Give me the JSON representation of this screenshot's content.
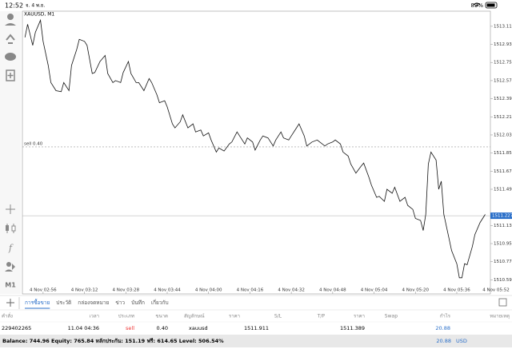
{
  "status_bar": {
    "time": "12:52",
    "date": "จ. 4 พ.ย.",
    "battery": "89%"
  },
  "toolbar": {
    "timeframe": "M1"
  },
  "chart_data": {
    "type": "line",
    "title": "XAUUSD, M1",
    "color": "#111111",
    "xlim": [
      0,
      181
    ],
    "ylim": [
      1510.45,
      1513.26
    ],
    "xticks": [
      {
        "value": 8,
        "label": "4 Nov 02:56"
      },
      {
        "value": 24,
        "label": "4 Nov 03:12"
      },
      {
        "value": 40,
        "label": "4 Nov 03:28"
      },
      {
        "value": 56,
        "label": "4 Nov 03:44"
      },
      {
        "value": 72,
        "label": "4 Nov 04:00"
      },
      {
        "value": 88,
        "label": "4 Nov 04:16"
      },
      {
        "value": 104,
        "label": "4 Nov 04:32"
      },
      {
        "value": 120,
        "label": "4 Nov 04:48"
      },
      {
        "value": 136,
        "label": "4 Nov 05:04"
      },
      {
        "value": 152,
        "label": "4 Nov 05:20"
      },
      {
        "value": 168,
        "label": "4 Nov 05:36"
      },
      {
        "value": 184,
        "label": "4 Nov 05:52"
      }
    ],
    "yticks": [
      {
        "value": 1513.11,
        "label": "1513.110"
      },
      {
        "value": 1512.93,
        "label": "1512.930"
      },
      {
        "value": 1512.75,
        "label": "1512.750"
      },
      {
        "value": 1512.57,
        "label": "1512.570"
      },
      {
        "value": 1512.39,
        "label": "1512.390"
      },
      {
        "value": 1512.21,
        "label": "1512.210"
      },
      {
        "value": 1512.03,
        "label": "1512.030"
      },
      {
        "value": 1511.85,
        "label": "1511.850"
      },
      {
        "value": 1511.67,
        "label": "1511.670"
      },
      {
        "value": 1511.49,
        "label": "1511.490"
      },
      {
        "value": 1511.13,
        "label": "1511.130"
      },
      {
        "value": 1510.95,
        "label": "1510.950"
      },
      {
        "value": 1510.77,
        "label": "1510.770"
      },
      {
        "value": 1510.59,
        "label": "1510.590"
      }
    ],
    "bid": 1511.227,
    "order_line": {
      "label": "sell 0.40",
      "value": 1511.911
    },
    "x": [
      1,
      2,
      4,
      5,
      7,
      8,
      10,
      11,
      13,
      15,
      16,
      18,
      19,
      21,
      22,
      24,
      25,
      27,
      28,
      30,
      32,
      33,
      35,
      36,
      38,
      39,
      41,
      42,
      44,
      45,
      47,
      49,
      50,
      52,
      53,
      55,
      56,
      58,
      59,
      61,
      62,
      64,
      66,
      67,
      69,
      70,
      72,
      73,
      75,
      76,
      78,
      80,
      81,
      83,
      84,
      86,
      87,
      89,
      90,
      92,
      93,
      95,
      97,
      98,
      100,
      101,
      103,
      104,
      106,
      107,
      109,
      110,
      112,
      114,
      115,
      117,
      118,
      120,
      121,
      123,
      124,
      126,
      127,
      129,
      131,
      132,
      134,
      135,
      137,
      138,
      140,
      141,
      143,
      144,
      146,
      148,
      149,
      151,
      152,
      154,
      155,
      156,
      157,
      158,
      160,
      161,
      162,
      163,
      165,
      166,
      168,
      169,
      170,
      171,
      172,
      174,
      175,
      177,
      179
    ],
    "values": [
      1513.0,
      1513.13,
      1512.92,
      1513.05,
      1513.17,
      1512.96,
      1512.72,
      1512.55,
      1512.47,
      1512.46,
      1512.55,
      1512.47,
      1512.72,
      1512.88,
      1512.98,
      1512.96,
      1512.92,
      1512.64,
      1512.65,
      1512.76,
      1512.82,
      1512.64,
      1512.55,
      1512.57,
      1512.55,
      1512.65,
      1512.76,
      1512.64,
      1512.55,
      1512.55,
      1512.47,
      1512.59,
      1512.55,
      1512.43,
      1512.35,
      1512.37,
      1512.31,
      1512.14,
      1512.1,
      1512.16,
      1512.23,
      1512.1,
      1512.14,
      1512.06,
      1512.08,
      1512.02,
      1512.05,
      1511.98,
      1511.86,
      1511.9,
      1511.87,
      1511.94,
      1511.96,
      1512.06,
      1512.02,
      1511.94,
      1512.0,
      1511.96,
      1511.88,
      1511.98,
      1512.02,
      1512.0,
      1511.92,
      1511.98,
      1512.06,
      1512.0,
      1511.98,
      1512.02,
      1512.1,
      1512.14,
      1512.02,
      1511.92,
      1511.96,
      1511.98,
      1511.96,
      1511.92,
      1511.94,
      1511.96,
      1511.98,
      1511.94,
      1511.86,
      1511.82,
      1511.74,
      1511.65,
      1511.72,
      1511.75,
      1511.61,
      1511.53,
      1511.41,
      1511.42,
      1511.37,
      1511.49,
      1511.45,
      1511.51,
      1511.37,
      1511.41,
      1511.33,
      1511.29,
      1511.2,
      1511.18,
      1511.08,
      1511.24,
      1511.74,
      1511.86,
      1511.78,
      1511.49,
      1511.57,
      1511.24,
      1511.0,
      1510.88,
      1510.75,
      1510.61,
      1510.61,
      1510.75,
      1510.74,
      1510.92,
      1511.04,
      1511.16,
      1511.24
    ]
  },
  "tabs": [
    "การซื้อขาย",
    "ประวัติ",
    "กล่องจดหมาย",
    "ข่าว",
    "บันทึก",
    "เกี่ยวกับ"
  ],
  "table": {
    "columns": [
      "คำสั่ง",
      "เวลา",
      "ประเภท",
      "ขนาด",
      "สัญลักษณ์",
      "ราคา",
      "S/L",
      "T/P",
      "ราคา",
      "Swap",
      "กำไร",
      "หมายเหตุ"
    ],
    "rows": [
      [
        "229402265",
        "11.04 04:36",
        "sell",
        "0.40",
        "xauusd",
        "1511.911",
        "",
        "",
        "1511.389",
        "",
        "20.88",
        ""
      ]
    ]
  },
  "footer": {
    "summary": "Balance: 744.96 Equity: 765.84 หลักประกัน: 151.19 ฟรี: 614.65 Level: 506.54%",
    "profit": "20.88",
    "currency": "USD"
  }
}
